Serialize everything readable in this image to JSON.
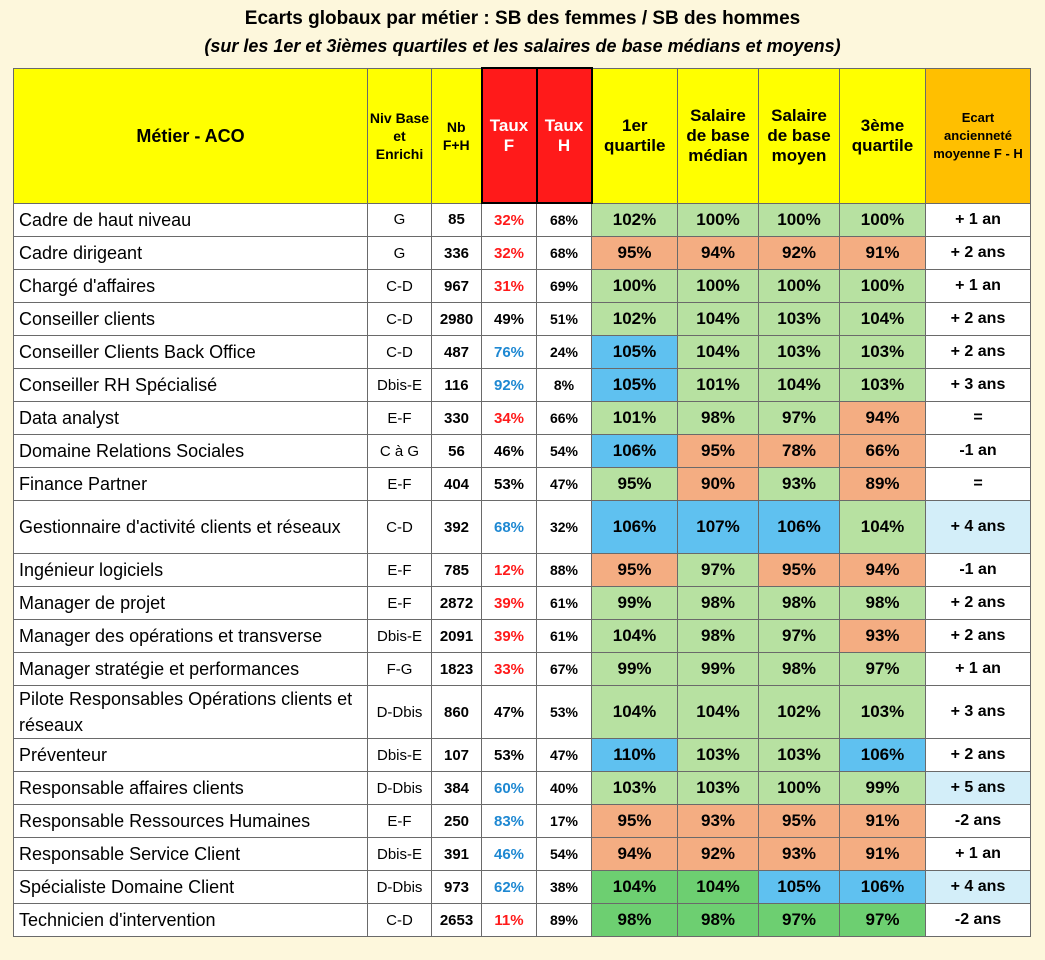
{
  "title": "Ecarts globaux par métier : SB des femmes / SB des hommes",
  "subtitle": "(sur les 1er et 3ièmes quartiles et les salaires de base médians et moyens)",
  "headers": {
    "metier": "Métier - ACO",
    "niv": "Niv Base et Enrichi",
    "nb": "Nb F+H",
    "taux_f": "Taux F",
    "taux_h": "Taux H",
    "q1": "1er quartile",
    "median": "Salaire de base médian",
    "moyen": "Salaire de base moyen",
    "q3": "3ème quartile",
    "ecart": "Ecart ancienneté moyenne F - H"
  },
  "colors": {
    "header_yellow": "#ffff00",
    "header_red": "#ff1a1a",
    "header_orange": "#ffbf00",
    "green": "#b7e1a1",
    "orange": "#f4ad82",
    "blue": "#5fc1f0",
    "light_blue": "#d3eef9",
    "text_red": "#ff1a1a",
    "text_blue": "#1e88d2"
  },
  "rows": [
    {
      "metier": "Cadre de haut niveau",
      "niv": "G",
      "nb": "85",
      "taux_f": "32%",
      "taux_h": "68%",
      "q1": "102%",
      "median": "100%",
      "moyen": "100%",
      "q3": "100%",
      "ecart": "+ 1 an"
    },
    {
      "metier": "Cadre dirigeant",
      "niv": "G",
      "nb": "336",
      "taux_f": "32%",
      "taux_h": "68%",
      "q1": "95%",
      "median": "94%",
      "moyen": "92%",
      "q3": "91%",
      "ecart": "+ 2 ans"
    },
    {
      "metier": "Chargé d'affaires",
      "niv": "C-D",
      "nb": "967",
      "taux_f": "31%",
      "taux_h": "69%",
      "q1": "100%",
      "median": "100%",
      "moyen": "100%",
      "q3": "100%",
      "ecart": "+ 1 an"
    },
    {
      "metier": "Conseiller clients",
      "niv": "C-D",
      "nb": "2980",
      "taux_f": "49%",
      "taux_h": "51%",
      "q1": "102%",
      "median": "104%",
      "moyen": "103%",
      "q3": "104%",
      "ecart": "+ 2 ans"
    },
    {
      "metier": "Conseiller Clients Back Office",
      "niv": "C-D",
      "nb": "487",
      "taux_f": "76%",
      "taux_h": "24%",
      "q1": "105%",
      "median": "104%",
      "moyen": "103%",
      "q3": "103%",
      "ecart": "+ 2 ans"
    },
    {
      "metier": "Conseiller RH Spécialisé",
      "niv": "Dbis-E",
      "nb": "116",
      "taux_f": "92%",
      "taux_h": "8%",
      "q1": "105%",
      "median": "101%",
      "moyen": "104%",
      "q3": "103%",
      "ecart": "+ 3 ans"
    },
    {
      "metier": "Data analyst",
      "niv": "E-F",
      "nb": "330",
      "taux_f": "34%",
      "taux_h": "66%",
      "q1": "101%",
      "median": "98%",
      "moyen": "97%",
      "q3": "94%",
      "ecart": "="
    },
    {
      "metier": "Domaine Relations Sociales",
      "niv": "C à G",
      "nb": "56",
      "taux_f": "46%",
      "taux_h": "54%",
      "q1": "106%",
      "median": "95%",
      "moyen": "78%",
      "q3": "66%",
      "ecart": "-1 an"
    },
    {
      "metier": "Finance Partner",
      "niv": "E-F",
      "nb": "404",
      "taux_f": "53%",
      "taux_h": "47%",
      "q1": "95%",
      "median": "90%",
      "moyen": "93%",
      "q3": "89%",
      "ecart": "="
    },
    {
      "metier": "Gestionnaire d'activité clients et réseaux",
      "niv": "C-D",
      "nb": "392",
      "taux_f": "68%",
      "taux_h": "32%",
      "q1": "106%",
      "median": "107%",
      "moyen": "106%",
      "q3": "104%",
      "ecart": "+ 4 ans"
    },
    {
      "metier": "Ingénieur logiciels",
      "niv": "E-F",
      "nb": "785",
      "taux_f": "12%",
      "taux_h": "88%",
      "q1": "95%",
      "median": "97%",
      "moyen": "95%",
      "q3": "94%",
      "ecart": "-1 an"
    },
    {
      "metier": "Manager de projet",
      "niv": "E-F",
      "nb": "2872",
      "taux_f": "39%",
      "taux_h": "61%",
      "q1": "99%",
      "median": "98%",
      "moyen": "98%",
      "q3": "98%",
      "ecart": "+ 2 ans"
    },
    {
      "metier": "Manager des opérations et transverse",
      "niv": "Dbis-E",
      "nb": "2091",
      "taux_f": "39%",
      "taux_h": "61%",
      "q1": "104%",
      "median": "98%",
      "moyen": "97%",
      "q3": "93%",
      "ecart": "+ 2 ans"
    },
    {
      "metier": "Manager stratégie et performances",
      "niv": "F-G",
      "nb": "1823",
      "taux_f": "33%",
      "taux_h": "67%",
      "q1": "99%",
      "median": "99%",
      "moyen": "98%",
      "q3": "97%",
      "ecart": "+ 1 an"
    },
    {
      "metier": "Pilote Responsables Opérations clients et réseaux",
      "niv": "D-Dbis",
      "nb": "860",
      "taux_f": "47%",
      "taux_h": "53%",
      "q1": "104%",
      "median": "104%",
      "moyen": "102%",
      "q3": "103%",
      "ecart": "+ 3 ans"
    },
    {
      "metier": "Préventeur",
      "niv": "Dbis-E",
      "nb": "107",
      "taux_f": "53%",
      "taux_h": "47%",
      "q1": "110%",
      "median": "103%",
      "moyen": "103%",
      "q3": "106%",
      "ecart": "+ 2 ans"
    },
    {
      "metier": "Responsable affaires clients",
      "niv": "D-Dbis",
      "nb": "384",
      "taux_f": "60%",
      "taux_h": "40%",
      "q1": "103%",
      "median": "103%",
      "moyen": "100%",
      "q3": "99%",
      "ecart": "+ 5 ans"
    },
    {
      "metier": "Responsable Ressources Humaines",
      "niv": "E-F",
      "nb": "250",
      "taux_f": "83%",
      "taux_h": "17%",
      "q1": "95%",
      "median": "93%",
      "moyen": "95%",
      "q3": "91%",
      "ecart": "-2 ans"
    },
    {
      "metier": "Responsable Service Client",
      "niv": "Dbis-E",
      "nb": "391",
      "taux_f": "46%",
      "taux_h": "54%",
      "q1": "94%",
      "median": "92%",
      "moyen": "93%",
      "q3": "91%",
      "ecart": "+ 1 an"
    },
    {
      "metier": "Spécialiste Domaine Client",
      "niv": "D-Dbis",
      "nb": "973",
      "taux_f": "62%",
      "taux_h": "38%",
      "q1": "104%",
      "median": "104%",
      "moyen": "105%",
      "q3": "106%",
      "ecart": "+ 4 ans"
    },
    {
      "metier": "Technicien d'intervention",
      "niv": "C-D",
      "nb": "2653",
      "taux_f": "11%",
      "taux_h": "89%",
      "q1": "98%",
      "median": "98%",
      "moyen": "97%",
      "q3": "97%",
      "ecart": "-2 ans"
    }
  ]
}
